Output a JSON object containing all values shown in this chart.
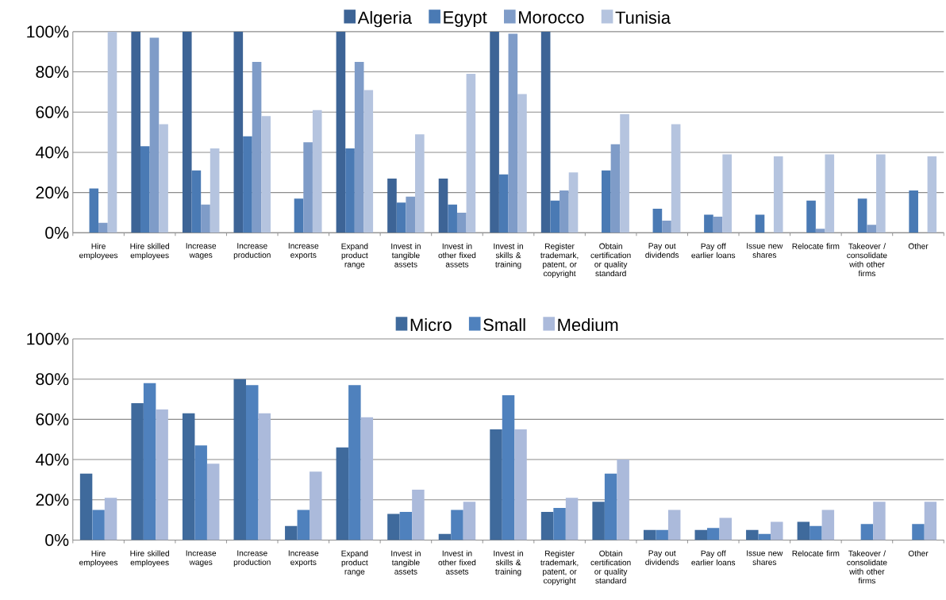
{
  "chart_data": [
    {
      "type": "bar",
      "categories": [
        "Hire employees",
        "Hire skilled employees",
        "Increase wages",
        "Increase production",
        "Increase exports",
        "Expand product range",
        "Invest in tangible assets",
        "Invest in other fixed assets",
        "Invest in skills & training",
        "Register trademark, patent, or copyright",
        "Obtain certification or quality standard",
        "Pay out dividends",
        "Pay off earlier loans",
        "Issue new shares",
        "Relocate firm",
        "Takeover / consolidate with other firms",
        "Other"
      ],
      "series": [
        {
          "name": "Algeria",
          "color": "#3d6496",
          "values": [
            0,
            100,
            100,
            100,
            0,
            100,
            27,
            27,
            100,
            100,
            0,
            0,
            0,
            0,
            0,
            0,
            0
          ]
        },
        {
          "name": "Egypt",
          "color": "#4a7ab4",
          "values": [
            22,
            43,
            31,
            48,
            17,
            42,
            15,
            14,
            29,
            16,
            31,
            12,
            9,
            9,
            16,
            17,
            21
          ]
        },
        {
          "name": "Morocco",
          "color": "#7f9cc8",
          "values": [
            5,
            97,
            14,
            85,
            45,
            85,
            18,
            10,
            99,
            21,
            44,
            6,
            8,
            0,
            2,
            4,
            0
          ]
        },
        {
          "name": "Tunisia",
          "color": "#b5c4df",
          "values": [
            100,
            54,
            42,
            58,
            61,
            71,
            49,
            79,
            69,
            30,
            59,
            54,
            39,
            38,
            39,
            39,
            38
          ]
        }
      ],
      "ylim": [
        0,
        100
      ],
      "yticks": [
        {
          "value": 0,
          "label": "0%"
        },
        {
          "value": 20,
          "label": "20%"
        },
        {
          "value": 40,
          "label": "40%"
        },
        {
          "value": 60,
          "label": "60%"
        },
        {
          "value": 80,
          "label": "80%"
        },
        {
          "value": 100,
          "label": "100%"
        }
      ],
      "grid": "y",
      "legend": "top"
    },
    {
      "type": "bar",
      "categories": [
        "Hire employees",
        "Hire skilled employees",
        "Increase wages",
        "Increase production",
        "Increase exports",
        "Expand product range",
        "Invest in tangible assets",
        "Invest in other fixed assets",
        "Invest in skills & training",
        "Register trademark, patent, or copyright",
        "Obtain certification or quality standard",
        "Pay out dividends",
        "Pay off earlier loans",
        "Issue new shares",
        "Relocate firm",
        "Takeover / consolidate with other firms",
        "Other"
      ],
      "series": [
        {
          "name": "Micro",
          "color": "#3f6a9c",
          "values": [
            33,
            68,
            63,
            80,
            7,
            46,
            13,
            3,
            55,
            14,
            19,
            5,
            5,
            5,
            9,
            0,
            0
          ]
        },
        {
          "name": "Small",
          "color": "#4f81bd",
          "values": [
            15,
            78,
            47,
            77,
            15,
            77,
            14,
            15,
            72,
            16,
            33,
            5,
            6,
            3,
            7,
            8,
            8
          ]
        },
        {
          "name": "Medium",
          "color": "#abbadb",
          "values": [
            21,
            65,
            38,
            63,
            34,
            61,
            25,
            19,
            55,
            21,
            40,
            15,
            11,
            9,
            15,
            19,
            19
          ]
        }
      ],
      "ylim": [
        0,
        100
      ],
      "yticks": [
        {
          "value": 0,
          "label": "0%"
        },
        {
          "value": 20,
          "label": "20%"
        },
        {
          "value": 40,
          "label": "40%"
        },
        {
          "value": 60,
          "label": "60%"
        },
        {
          "value": 80,
          "label": "80%"
        },
        {
          "value": 100,
          "label": "100%"
        }
      ],
      "grid": "y",
      "legend": "top"
    }
  ]
}
